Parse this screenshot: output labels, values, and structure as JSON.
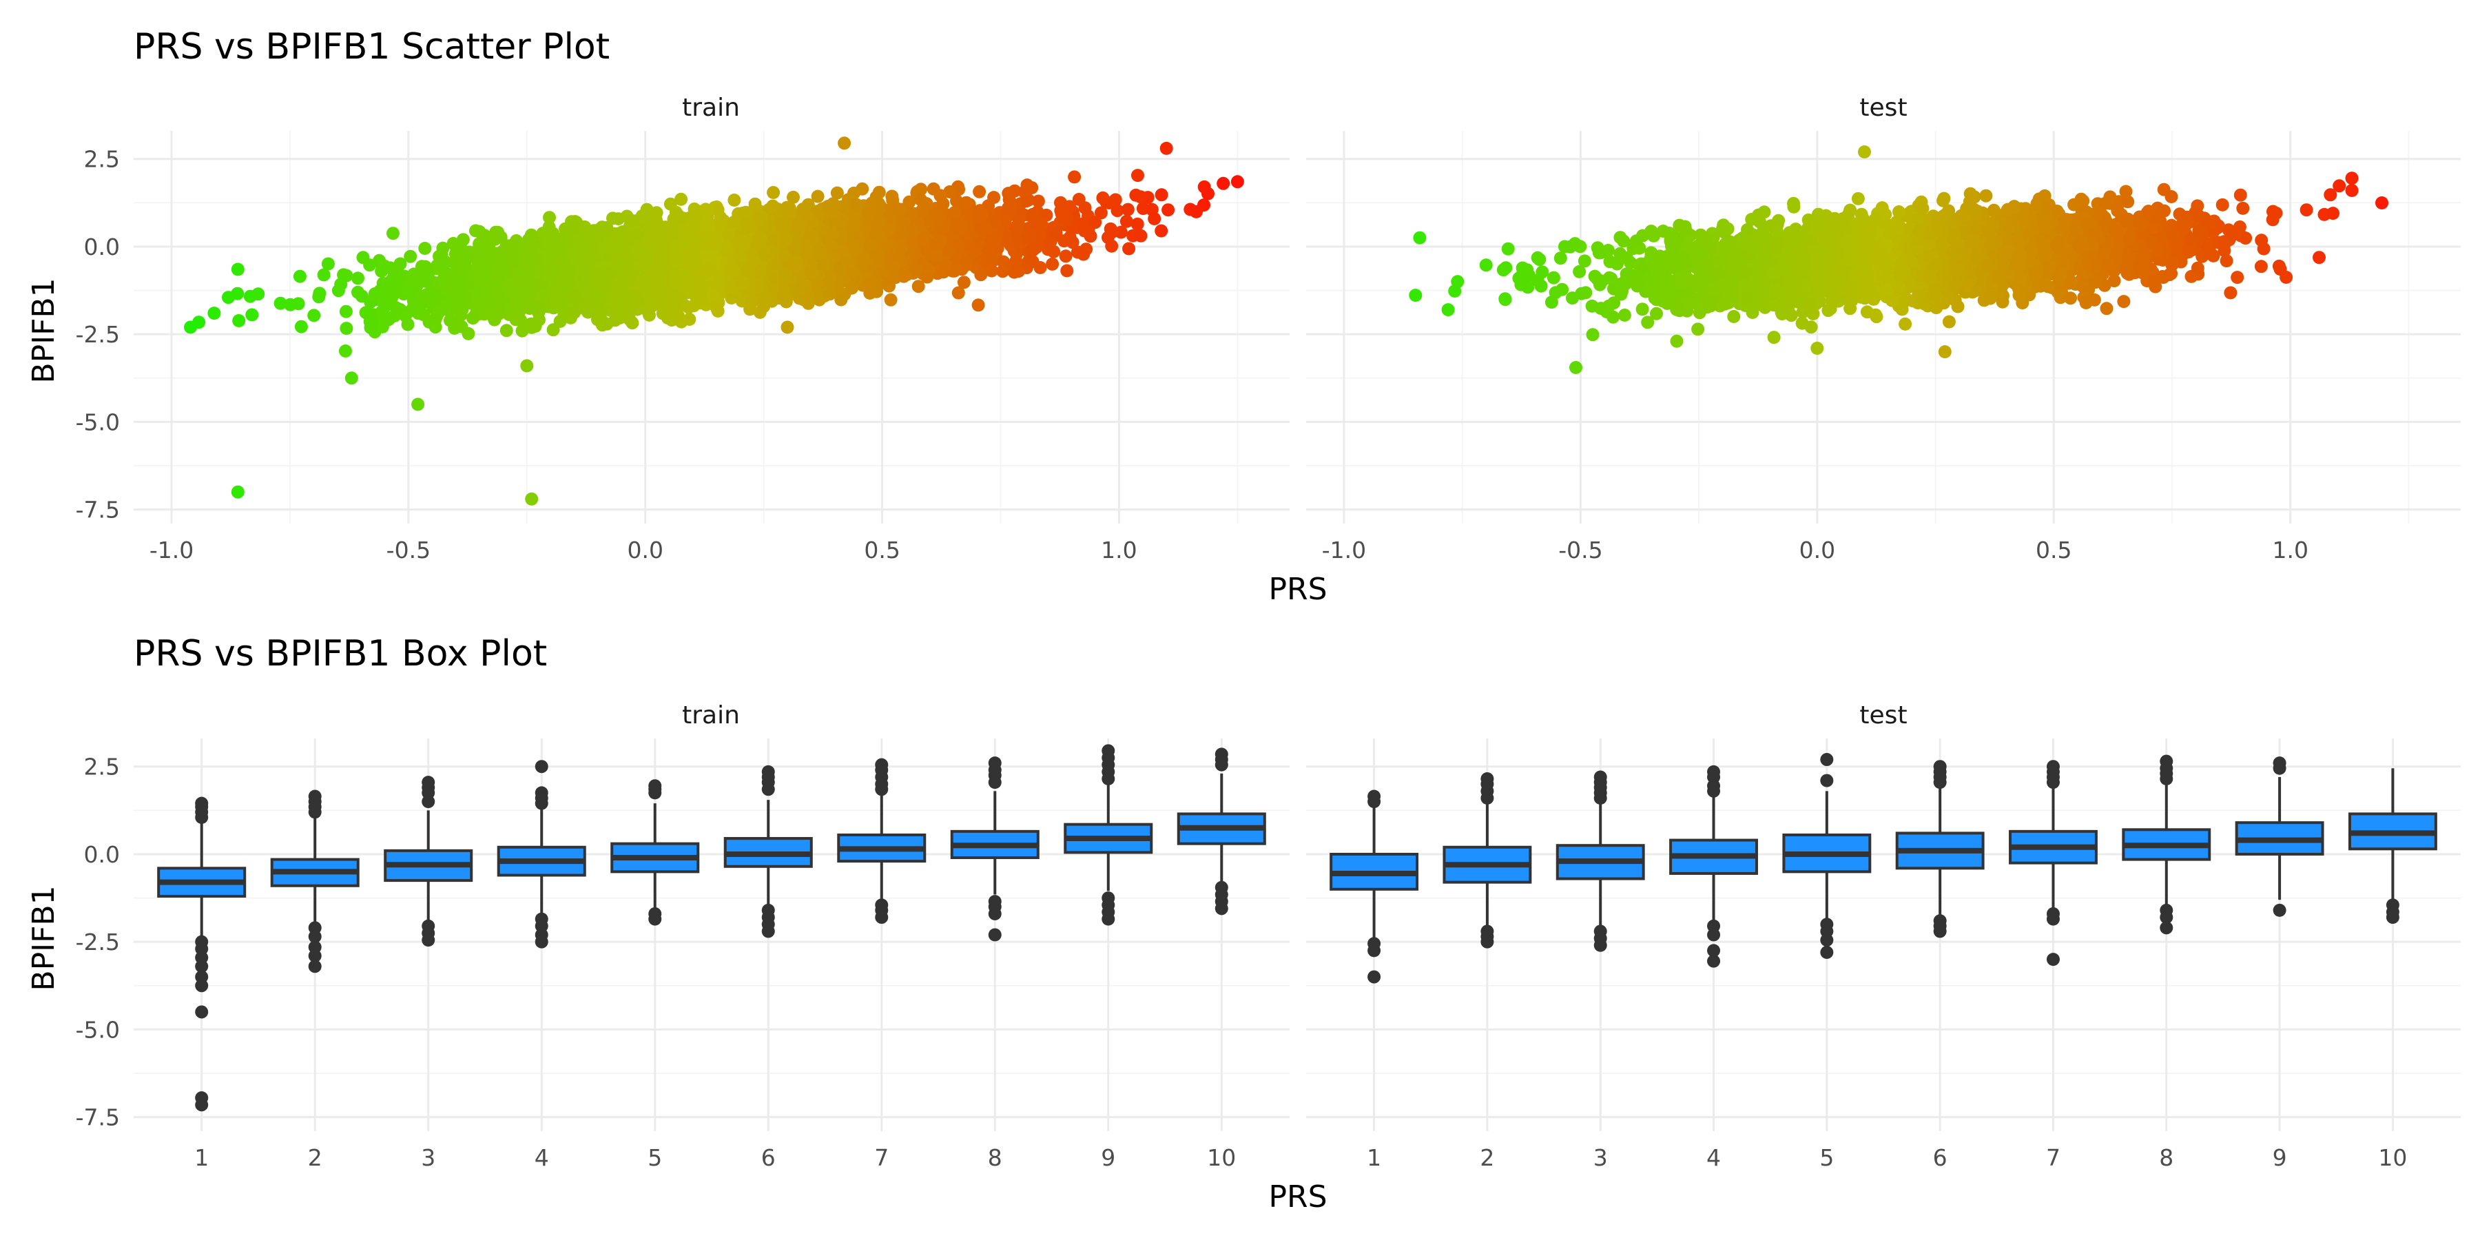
{
  "chart_data": [
    {
      "type": "scatter",
      "title": "PRS vs BPIFB1 Scatter Plot",
      "xlabel": "PRS",
      "ylabel": "BPIFB1",
      "xlim": [
        -1.08,
        1.36
      ],
      "ylim": [
        -7.9,
        3.3
      ],
      "x_ticks": [
        "-1.0",
        "-0.5",
        "0.0",
        "0.5",
        "1.0"
      ],
      "y_ticks": [
        "2.5",
        "0.0",
        "-2.5",
        "-5.0",
        "-7.5"
      ],
      "color_scale": {
        "low": "#22ee00",
        "mid": "#bbbb00",
        "high": "#ff1100",
        "mapped_to": "PRS"
      },
      "grid": true,
      "facets": [
        {
          "name": "train",
          "n_points": 6000,
          "x_mean": 0.15,
          "x_sd": 0.3,
          "slope": 1.28,
          "intercept": -0.55,
          "resid_sd": 0.55,
          "outliers": [
            {
              "x": -0.96,
              "y": -2.3
            },
            {
              "x": -0.91,
              "y": -1.9
            },
            {
              "x": -0.88,
              "y": -1.45
            },
            {
              "x": -0.86,
              "y": -0.65
            },
            {
              "x": -0.86,
              "y": -7.0
            },
            {
              "x": -0.48,
              "y": -4.5
            },
            {
              "x": -0.62,
              "y": -3.75
            },
            {
              "x": -0.24,
              "y": -7.2
            },
            {
              "x": -0.25,
              "y": -3.4
            },
            {
              "x": 0.42,
              "y": 2.95
            },
            {
              "x": 1.1,
              "y": 2.8
            },
            {
              "x": 1.18,
              "y": 1.7
            },
            {
              "x": 1.22,
              "y": 1.8
            },
            {
              "x": 1.25,
              "y": 1.85
            },
            {
              "x": 0.3,
              "y": -2.3
            }
          ]
        },
        {
          "name": "test",
          "n_points": 4000,
          "x_mean": 0.2,
          "x_sd": 0.28,
          "slope": 0.95,
          "intercept": -0.5,
          "resid_sd": 0.55,
          "outliers": [
            {
              "x": -0.84,
              "y": 0.25
            },
            {
              "x": -0.78,
              "y": -1.8
            },
            {
              "x": -0.76,
              "y": -1.0
            },
            {
              "x": -0.51,
              "y": -3.45
            },
            {
              "x": 0.27,
              "y": -3.0
            },
            {
              "x": 0.1,
              "y": 2.7
            },
            {
              "x": 1.13,
              "y": 1.95
            },
            {
              "x": 1.13,
              "y": 1.6
            },
            {
              "x": 1.09,
              "y": 0.95
            },
            {
              "x": 0.0,
              "y": -2.9
            }
          ]
        }
      ]
    },
    {
      "type": "box",
      "title": "PRS vs BPIFB1 Box Plot",
      "xlabel": "PRS",
      "ylabel": "BPIFB1",
      "categories": [
        "1",
        "2",
        "3",
        "4",
        "5",
        "6",
        "7",
        "8",
        "9",
        "10"
      ],
      "ylim": [
        -7.9,
        3.3
      ],
      "y_ticks": [
        "2.5",
        "0.0",
        "-2.5",
        "-5.0",
        "-7.5"
      ],
      "box_fill": "#1e90ff",
      "box_line": "#333333",
      "facets": [
        {
          "name": "train",
          "boxes": [
            {
              "q1": -1.2,
              "median": -0.8,
              "q3": -0.4,
              "wlo": -2.35,
              "whi": 0.95,
              "outliers": [
                1.45,
                1.35,
                1.2,
                1.05,
                -2.5,
                -2.7,
                -2.95,
                -3.2,
                -3.5,
                -3.75,
                -4.5,
                -6.95,
                -7.15
              ]
            },
            {
              "q1": -0.9,
              "median": -0.5,
              "q3": -0.15,
              "wlo": -1.95,
              "whi": 1.1,
              "outliers": [
                1.65,
                1.5,
                1.35,
                1.2,
                -2.1,
                -2.35,
                -2.65,
                -2.9,
                -3.2
              ]
            },
            {
              "q1": -0.75,
              "median": -0.3,
              "q3": 0.1,
              "wlo": -1.95,
              "whi": 1.25,
              "outliers": [
                2.05,
                1.9,
                1.75,
                1.5,
                -2.05,
                -2.25,
                -2.45
              ]
            },
            {
              "q1": -0.6,
              "median": -0.2,
              "q3": 0.2,
              "wlo": -1.75,
              "whi": 1.35,
              "outliers": [
                2.5,
                1.75,
                1.6,
                1.45,
                -1.85,
                -2.05,
                -2.3,
                -2.5
              ]
            },
            {
              "q1": -0.5,
              "median": -0.1,
              "q3": 0.3,
              "wlo": -1.55,
              "whi": 1.45,
              "outliers": [
                1.95,
                1.85,
                1.75,
                -1.7,
                -1.85
              ]
            },
            {
              "q1": -0.35,
              "median": 0.0,
              "q3": 0.45,
              "wlo": -1.45,
              "whi": 1.55,
              "outliers": [
                2.35,
                2.2,
                2.05,
                1.85,
                -1.6,
                -1.8,
                -2.0,
                -2.2
              ]
            },
            {
              "q1": -0.2,
              "median": 0.15,
              "q3": 0.55,
              "wlo": -1.3,
              "whi": 1.7,
              "outliers": [
                2.55,
                2.4,
                2.2,
                2.0,
                1.85,
                -1.45,
                -1.6,
                -1.8
              ]
            },
            {
              "q1": -0.1,
              "median": 0.25,
              "q3": 0.65,
              "wlo": -1.15,
              "whi": 1.8,
              "outliers": [
                2.6,
                2.4,
                2.25,
                2.05,
                -1.35,
                -1.5,
                -1.7,
                -2.3
              ]
            },
            {
              "q1": 0.05,
              "median": 0.45,
              "q3": 0.85,
              "wlo": -1.05,
              "whi": 2.0,
              "outliers": [
                2.95,
                2.75,
                2.55,
                2.35,
                2.15,
                -1.25,
                -1.45,
                -1.65,
                -1.85
              ]
            },
            {
              "q1": 0.3,
              "median": 0.75,
              "q3": 1.15,
              "wlo": -0.85,
              "whi": 2.3,
              "outliers": [
                2.85,
                2.7,
                2.55,
                -0.95,
                -1.15,
                -1.35,
                -1.55
              ]
            }
          ]
        },
        {
          "name": "test",
          "boxes": [
            {
              "q1": -1.0,
              "median": -0.55,
              "q3": 0.0,
              "wlo": -2.4,
              "whi": 1.4,
              "outliers": [
                1.65,
                1.5,
                -2.55,
                -2.75,
                -3.5
              ]
            },
            {
              "q1": -0.8,
              "median": -0.3,
              "q3": 0.2,
              "wlo": -2.1,
              "whi": 1.45,
              "outliers": [
                2.15,
                2.0,
                1.8,
                1.6,
                -2.2,
                -2.35,
                -2.5
              ]
            },
            {
              "q1": -0.7,
              "median": -0.2,
              "q3": 0.25,
              "wlo": -2.1,
              "whi": 1.55,
              "outliers": [
                2.2,
                2.05,
                1.9,
                1.75,
                1.6,
                -2.2,
                -2.4,
                -2.6
              ]
            },
            {
              "q1": -0.55,
              "median": -0.05,
              "q3": 0.4,
              "wlo": -1.95,
              "whi": 1.7,
              "outliers": [
                2.35,
                2.2,
                1.95,
                1.8,
                -2.05,
                -2.3,
                -2.75,
                -3.05
              ]
            },
            {
              "q1": -0.5,
              "median": 0.0,
              "q3": 0.55,
              "wlo": -1.9,
              "whi": 1.8,
              "outliers": [
                2.7,
                2.1,
                -2.0,
                -2.2,
                -2.45,
                -2.8
              ]
            },
            {
              "q1": -0.4,
              "median": 0.1,
              "q3": 0.6,
              "wlo": -1.8,
              "whi": 1.9,
              "outliers": [
                2.5,
                2.35,
                2.2,
                2.05,
                -1.9,
                -2.05,
                -2.2
              ]
            },
            {
              "q1": -0.25,
              "median": 0.2,
              "q3": 0.65,
              "wlo": -1.65,
              "whi": 1.95,
              "outliers": [
                2.5,
                2.35,
                2.2,
                2.05,
                -1.7,
                -1.85,
                -3.0
              ]
            },
            {
              "q1": -0.15,
              "median": 0.25,
              "q3": 0.7,
              "wlo": -1.5,
              "whi": 2.0,
              "outliers": [
                2.65,
                2.45,
                2.3,
                2.15,
                -1.6,
                -1.8,
                -2.1
              ]
            },
            {
              "q1": 0.0,
              "median": 0.4,
              "q3": 0.9,
              "wlo": -1.3,
              "whi": 2.2,
              "outliers": [
                2.6,
                2.45,
                -1.6
              ]
            },
            {
              "q1": 0.15,
              "median": 0.6,
              "q3": 1.15,
              "wlo": -1.3,
              "whi": 2.45,
              "outliers": [
                -1.45,
                -1.65,
                -1.8
              ]
            }
          ]
        }
      ]
    }
  ]
}
